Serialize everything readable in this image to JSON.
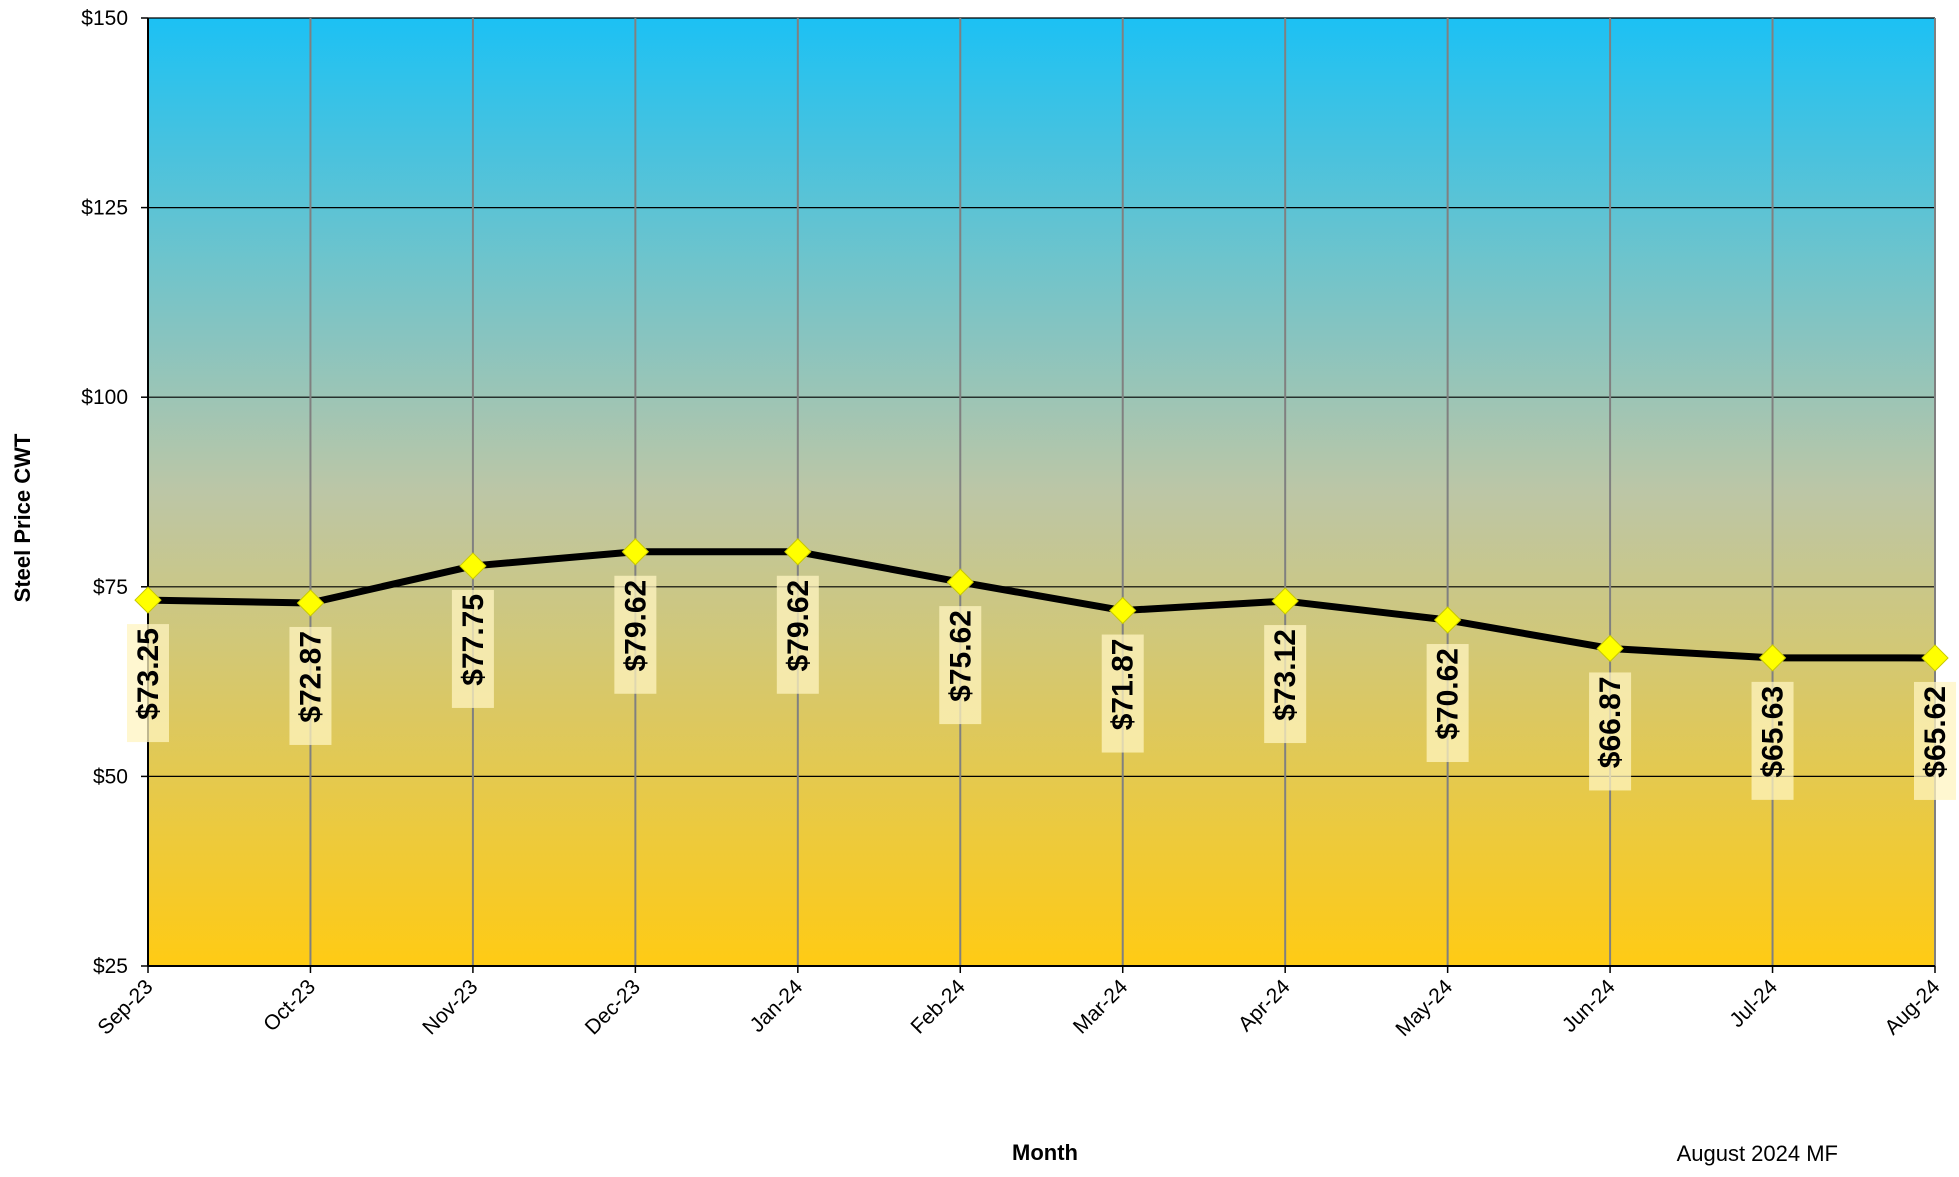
{
  "chart_data": {
    "type": "line",
    "categories": [
      "Sep-23",
      "Oct-23",
      "Nov-23",
      "Dec-23",
      "Jan-24",
      "Feb-24",
      "Mar-24",
      "Apr-24",
      "May-24",
      "Jun-24",
      "Jul-24",
      "Aug-24"
    ],
    "series": [
      {
        "values": [
          73.25,
          72.87,
          77.75,
          79.62,
          79.62,
          75.62,
          71.87,
          73.12,
          70.62,
          66.87,
          65.63,
          65.62
        ]
      }
    ],
    "data_labels": [
      "$73.25",
      "$72.87",
      "$77.75",
      "$79.62",
      "$79.62",
      "$75.62",
      "$71.87",
      "$73.12",
      "$70.62",
      "$66.87",
      "$65.63",
      "$65.62"
    ],
    "xlabel": "Month",
    "ylabel": "Steel Price CWT",
    "ylim": [
      25,
      150
    ],
    "yticks": [
      25,
      50,
      75,
      100,
      125,
      150
    ],
    "ytick_labels": [
      "$25",
      "$50",
      "$75",
      "$100",
      "$125",
      "$150"
    ],
    "grid": true,
    "line_color": "#000000",
    "marker_color": "#ffff00",
    "background_gradient": [
      "#1cc1f4",
      "#ffcb14"
    ]
  },
  "footnote": "August 2024 MF"
}
